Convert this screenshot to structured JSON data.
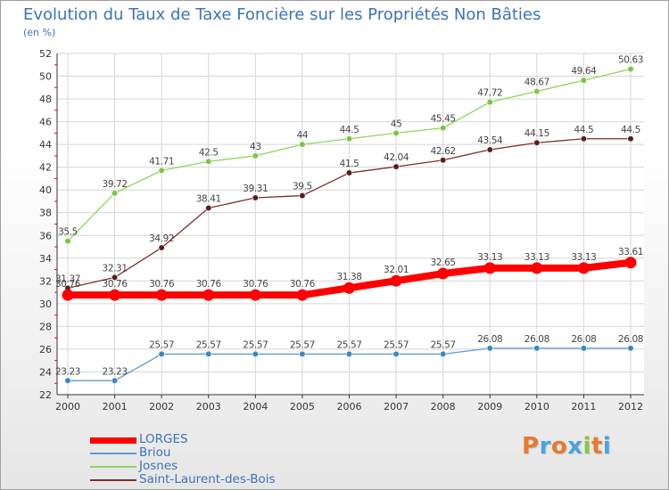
{
  "title": "Evolution du Taux de Taxe Foncière sur les Propriétés Non Bâties",
  "unit_label": "(en %)",
  "brand": {
    "letters": [
      "P",
      "r",
      "o",
      "x",
      "i",
      "t",
      "i"
    ],
    "colors": [
      "#e8792e",
      "#4aa3df",
      "#e8792e",
      "#4aa3df",
      "#8cc63f",
      "#e8792e",
      "#4aa3df"
    ]
  },
  "chart_data": {
    "type": "line",
    "title": "Evolution du Taux de Taxe Foncière sur les Propriétés Non Bâties",
    "ylabel": "(en %)",
    "xlabel": "",
    "x": [
      "2000",
      "2001",
      "2002",
      "2003",
      "2004",
      "2005",
      "2006",
      "2007",
      "2008",
      "2009",
      "2010",
      "2011",
      "2012"
    ],
    "ylim": [
      22,
      52
    ],
    "yticks": [
      "22",
      "24",
      "26",
      "28",
      "30",
      "32",
      "34",
      "36",
      "38",
      "40",
      "42",
      "44",
      "46",
      "48",
      "50",
      "52"
    ],
    "grid": true,
    "legend_position": "bottom-left",
    "series": [
      {
        "name": "Josnes",
        "color": "#8fd35e",
        "marker_color": "#7cc644",
        "values": [
          35.5,
          39.72,
          41.71,
          42.5,
          43,
          44,
          44.5,
          45,
          45.45,
          47.72,
          48.67,
          49.64,
          50.63
        ],
        "labels": [
          "35.5",
          "39.72",
          "41.71",
          "42.5",
          "43",
          "44",
          "44.5",
          "45",
          "45.45",
          "47.72",
          "48.67",
          "49.64",
          "50.63"
        ]
      },
      {
        "name": "Saint-Laurent-des-Bois",
        "color": "#7a2e2e",
        "marker_color": "#5a1e1e",
        "values": [
          31.37,
          32.31,
          34.92,
          38.41,
          39.31,
          39.5,
          41.5,
          42.04,
          42.62,
          43.54,
          44.15,
          44.5,
          44.5
        ],
        "labels": [
          "31.37",
          "32.31",
          "34.92",
          "38.41",
          "39.31",
          "39.5",
          "41.5",
          "42.04",
          "42.62",
          "43.54",
          "44.15",
          "44.5",
          "44.5"
        ]
      },
      {
        "name": "Briou",
        "color": "#5e9ad0",
        "marker_color": "#3d86c6",
        "values": [
          23.23,
          23.23,
          25.57,
          25.57,
          25.57,
          25.57,
          25.57,
          25.57,
          25.57,
          26.08,
          26.08,
          26.08,
          26.08
        ],
        "labels": [
          "23.23",
          "23.23",
          "25.57",
          "25.57",
          "25.57",
          "25.57",
          "25.57",
          "25.57",
          "25.57",
          "26.08",
          "26.08",
          "26.08",
          "26.08"
        ]
      },
      {
        "name": "LORGES",
        "color": "#ff0000",
        "marker_color": "#ff0000",
        "values": [
          30.76,
          30.76,
          30.76,
          30.76,
          30.76,
          30.76,
          31.38,
          32.01,
          32.65,
          33.13,
          33.13,
          33.13,
          33.61
        ],
        "labels": [
          "30.76",
          "30.76",
          "30.76",
          "30.76",
          "30.76",
          "30.76",
          "31.38",
          "32.01",
          "32.65",
          "33.13",
          "33.13",
          "33.13",
          "33.61"
        ]
      }
    ],
    "legend_order": [
      "LORGES",
      "Briou",
      "Josnes",
      "Saint-Laurent-des-Bois"
    ]
  }
}
